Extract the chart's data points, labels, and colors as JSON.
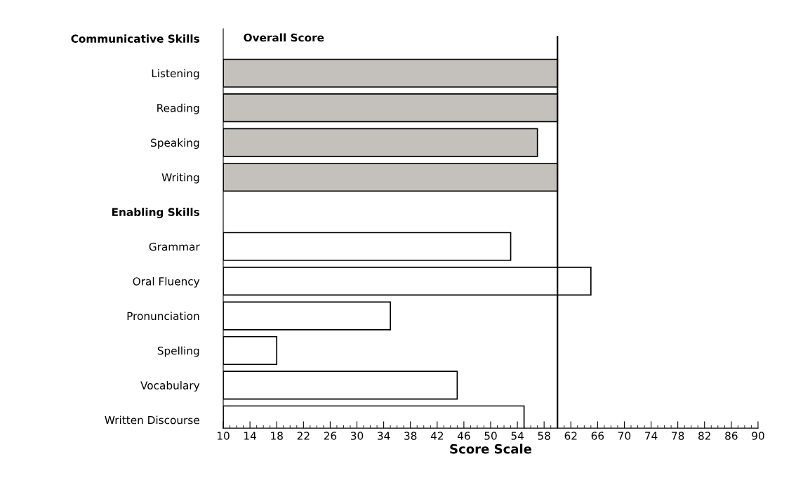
{
  "chart_data": {
    "type": "bar",
    "orientation": "horizontal",
    "xlabel": "Score Scale",
    "categories": [
      "Communicative Skills",
      "Listening",
      "Reading",
      "Speaking",
      "Writing",
      "Enabling Skills",
      "Grammar",
      "Oral Fluency",
      "Pronunciation",
      "Spelling",
      "Vocabulary",
      "Written Discourse"
    ],
    "values": [
      null,
      60,
      60,
      57,
      60,
      null,
      53,
      65,
      35,
      18,
      45,
      55
    ],
    "colors": [
      "#c4c0bc",
      "#c4c0bc",
      "#c4c0bc",
      "#c4c0bc",
      "#c4c0bc",
      "#ffffff",
      "#ffffff",
      "#ffffff",
      "#ffffff",
      "#ffffff",
      "#ffffff",
      "#ffffff"
    ],
    "xlim": [
      10,
      90
    ],
    "xticks": [
      10,
      {
        "value": 11,
        "label": null
      },
      {
        "value": 12,
        "label": null
      },
      {
        "value": 13,
        "label": null
      },
      14,
      {
        "value": 15,
        "label": null
      },
      {
        "value": 16,
        "label": null
      },
      {
        "value": 17,
        "label": null
      },
      18,
      {
        "value": 19,
        "label": null
      },
      {
        "value": 20,
        "label": null
      },
      {
        "value": 21,
        "label": null
      },
      22,
      {
        "value": 23,
        "label": null
      },
      {
        "value": 24,
        "label": null
      },
      {
        "value": 25,
        "label": null
      },
      26,
      {
        "value": 27,
        "label": null
      },
      {
        "value": 28,
        "label": null
      },
      {
        "value": 29,
        "label": null
      },
      30,
      {
        "value": 31,
        "label": null
      },
      {
        "value": 32,
        "label": null
      },
      {
        "value": 33,
        "label": null
      },
      34,
      {
        "value": 35,
        "label": null
      },
      {
        "value": 36,
        "label": null
      },
      {
        "value": 37,
        "label": null
      },
      38,
      {
        "value": 39,
        "label": null
      },
      {
        "value": 40,
        "label": null
      },
      {
        "value": 41,
        "label": null
      },
      42,
      {
        "value": 43,
        "label": null
      },
      {
        "value": 44,
        "label": null
      },
      {
        "value": 45,
        "label": null
      },
      46,
      {
        "value": 47,
        "label": null
      },
      {
        "value": 48,
        "label": null
      },
      {
        "value": 49,
        "label": null
      },
      50,
      {
        "value": 51,
        "label": null
      },
      {
        "value": 52,
        "label": null
      },
      {
        "value": 53,
        "label": null
      },
      54,
      {
        "value": 55,
        "label": null
      },
      {
        "value": 56,
        "label": null
      },
      {
        "value": 57,
        "label": null
      },
      58,
      {
        "value": 59,
        "label": null
      },
      {
        "value": 60,
        "label": null
      },
      {
        "value": 61,
        "label": null
      },
      62,
      {
        "value": 63,
        "label": null
      },
      {
        "value": 64,
        "label": null
      },
      {
        "value": 65,
        "label": null
      },
      66,
      {
        "value": 67,
        "label": null
      },
      {
        "value": 68,
        "label": null
      },
      {
        "value": 69,
        "label": null
      },
      70,
      {
        "value": 71,
        "label": null
      },
      {
        "value": 72,
        "label": null
      },
      {
        "value": 73,
        "label": null
      },
      74,
      {
        "value": 75,
        "label": null
      },
      {
        "value": 76,
        "label": null
      },
      {
        "value": 77,
        "label": null
      },
      78,
      {
        "value": 79,
        "label": null
      },
      {
        "value": 80,
        "label": null
      },
      {
        "value": 81,
        "label": null
      },
      82,
      {
        "value": 83,
        "label": null
      },
      {
        "value": 84,
        "label": null
      },
      {
        "value": 85,
        "label": null
      },
      86,
      {
        "value": 87,
        "label": null
      },
      {
        "value": 88,
        "label": null
      },
      {
        "value": 89,
        "label": null
      },
      90
    ],
    "ref_lines": [
      {
        "axis": "x",
        "value": 60,
        "label": "Overall Score",
        "color": "#000000",
        "line_style": "solid"
      }
    ],
    "grid": false,
    "legend": false
  }
}
